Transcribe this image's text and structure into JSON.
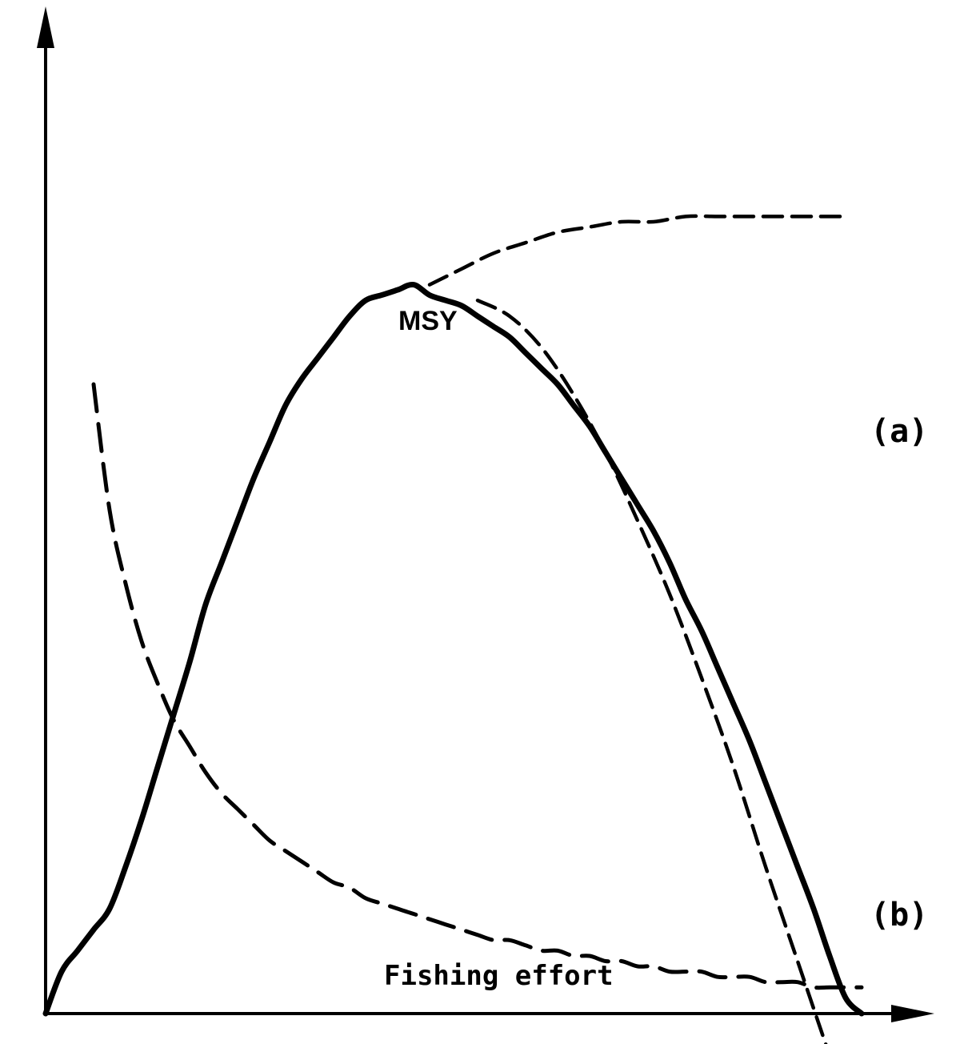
{
  "chart_data": {
    "type": "line",
    "xlabel": "Fishing effort",
    "ylabel": "",
    "x_ticks": [],
    "y_ticks": [],
    "grid": false,
    "annotations": [
      {
        "text": "MSY",
        "near_series": "(a) yield"
      }
    ],
    "series": [
      {
        "name": "(a)",
        "style": "solid",
        "x": [
          0,
          20,
          40,
          60,
          80,
          100,
          120,
          140,
          160,
          180,
          200,
          220,
          240,
          260,
          280,
          300,
          320,
          340,
          360,
          380,
          400,
          420,
          440,
          460,
          480,
          500,
          520,
          540,
          560,
          580,
          600,
          620,
          640,
          660,
          680,
          700,
          720,
          740,
          760,
          780,
          800,
          820,
          840,
          860,
          880,
          900,
          920,
          940,
          960,
          980,
          1000,
          1020
        ],
        "values": [
          0,
          8,
          12,
          16,
          20,
          28,
          37,
          47,
          57,
          67,
          78,
          86,
          94,
          102,
          109,
          116,
          121,
          125,
          129,
          133,
          136,
          137,
          138,
          139,
          137,
          136,
          135,
          133,
          131,
          129,
          126,
          123,
          120,
          116,
          112,
          107,
          102,
          97,
          92,
          86,
          79,
          73,
          66,
          59,
          52,
          44,
          36,
          28,
          20,
          11,
          3,
          0
        ]
      },
      {
        "name": "(b)",
        "style": "long-dash",
        "x": [
          60,
          80,
          100,
          120,
          140,
          160,
          180,
          200,
          220,
          240,
          260,
          280,
          300,
          320,
          340,
          360,
          380,
          400,
          420,
          440,
          460,
          480,
          500,
          520,
          540,
          560,
          580,
          600,
          620,
          640,
          660,
          680,
          700,
          720,
          740,
          760,
          780,
          800,
          820,
          840,
          860,
          880,
          900,
          920,
          940,
          960,
          980,
          1000,
          1020
        ],
        "values": [
          120,
          96,
          82,
          71,
          63,
          56,
          51,
          46,
          42,
          39,
          36,
          33,
          31,
          29,
          27,
          25,
          24,
          22,
          21,
          20,
          19,
          18,
          17,
          16,
          15,
          14,
          14,
          13,
          12,
          12,
          11,
          11,
          10,
          10,
          9,
          9,
          8,
          8,
          8,
          7,
          7,
          7,
          6,
          6,
          6,
          5,
          5,
          5,
          5
        ]
      },
      {
        "name": "",
        "style": "short-dash",
        "x": [
          480,
          520,
          560,
          600,
          640,
          680,
          720,
          760,
          800,
          840,
          880,
          920,
          960,
          1000
        ],
        "values": [
          139,
          142,
          145,
          147,
          149,
          150,
          151,
          151,
          152,
          152,
          152,
          152,
          152,
          152
        ]
      },
      {
        "name": "",
        "style": "short-dash",
        "x": [
          540,
          580,
          620,
          660,
          700,
          740,
          780,
          820,
          860,
          900,
          940,
          980
        ],
        "values": [
          136,
          133,
          127,
          118,
          107,
          94,
          80,
          64,
          47,
          28,
          10,
          -8
        ]
      }
    ],
    "legend": "inline labels at right ends of curves"
  }
}
